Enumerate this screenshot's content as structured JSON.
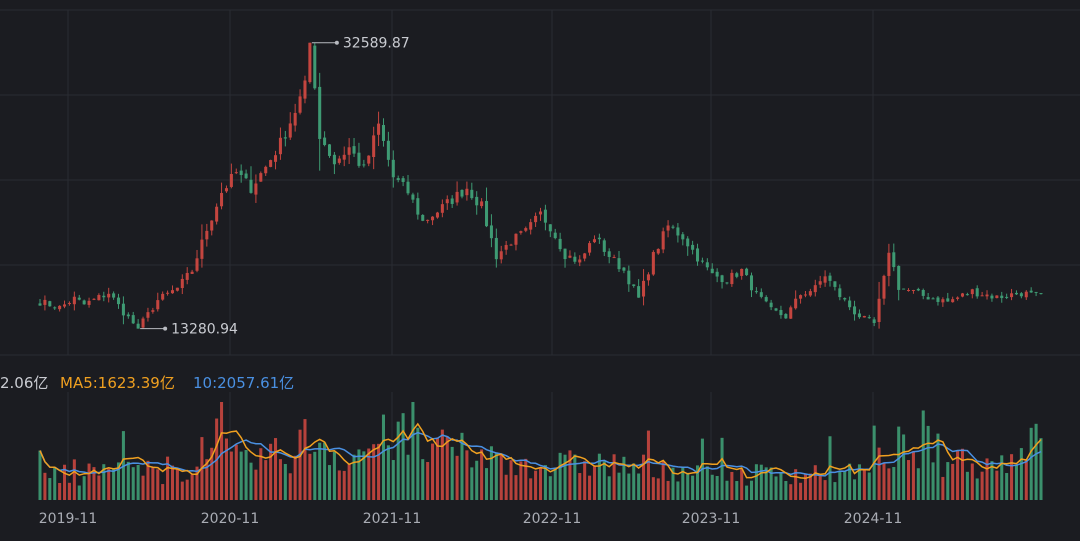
{
  "chart_data": {
    "type": "candlestick",
    "colors": {
      "background": "#1b1c21",
      "grid": "#2a2c33",
      "up": "#c4453f",
      "down": "#3e9a73",
      "ma5": "#f0a020",
      "ma10": "#4a90e2",
      "text": "#c9cbd1",
      "axis_text": "#a9acb4",
      "marker": "#b8bac0"
    },
    "x_axis": {
      "ticks": [
        "2019-11",
        "2020-11",
        "2021-11",
        "2022-11",
        "2023-11",
        "2024-11"
      ]
    },
    "price": {
      "high_label": "32589.87",
      "low_label": "13280.94",
      "high_value": 32589.87,
      "low_value": 13280.94,
      "ylim": [
        11500,
        34800
      ],
      "anchors": [
        [
          0,
          15100
        ],
        [
          4,
          14700
        ],
        [
          7,
          15300
        ],
        [
          9,
          14900
        ],
        [
          14,
          15700
        ],
        [
          17,
          14400
        ],
        [
          20,
          13280.94
        ],
        [
          24,
          15200
        ],
        [
          28,
          16000
        ],
        [
          31,
          17200
        ],
        [
          34,
          20000
        ],
        [
          37,
          22500
        ],
        [
          40,
          23800
        ],
        [
          43,
          22800
        ],
        [
          46,
          24200
        ],
        [
          49,
          25800
        ],
        [
          52,
          28000
        ],
        [
          54,
          29600
        ],
        [
          55,
          32589.87
        ],
        [
          57,
          26400
        ],
        [
          60,
          24500
        ],
        [
          63,
          25500
        ],
        [
          66,
          24000
        ],
        [
          69,
          27000
        ],
        [
          72,
          23500
        ],
        [
          75,
          22500
        ],
        [
          78,
          20500
        ],
        [
          81,
          21200
        ],
        [
          84,
          22000
        ],
        [
          87,
          22800
        ],
        [
          90,
          21500
        ],
        [
          93,
          18200
        ],
        [
          96,
          19200
        ],
        [
          99,
          19800
        ],
        [
          102,
          21000
        ],
        [
          104,
          20200
        ],
        [
          107,
          18300
        ],
        [
          110,
          17800
        ],
        [
          113,
          19500
        ],
        [
          116,
          18200
        ],
        [
          119,
          17200
        ],
        [
          122,
          15300
        ],
        [
          125,
          18200
        ],
        [
          128,
          20200
        ],
        [
          131,
          19500
        ],
        [
          134,
          18100
        ],
        [
          137,
          16900
        ],
        [
          140,
          16600
        ],
        [
          143,
          17200
        ],
        [
          146,
          15600
        ],
        [
          149,
          14500
        ],
        [
          152,
          14100
        ],
        [
          155,
          15600
        ],
        [
          158,
          16000
        ],
        [
          160,
          16900
        ],
        [
          163,
          15500
        ],
        [
          166,
          14400
        ],
        [
          168,
          13900
        ],
        [
          170,
          13600
        ],
        [
          172,
          16600
        ],
        [
          173,
          18600
        ],
        [
          175,
          16100
        ],
        [
          180,
          15500
        ],
        [
          185,
          15100
        ],
        [
          190,
          15800
        ],
        [
          195,
          15400
        ],
        [
          200,
          15700
        ],
        [
          204,
          15400
        ]
      ]
    },
    "volume": {
      "legend_vol": "2.06亿",
      "legend_ma5": "MA5:1623.39亿",
      "legend_ma10": "10:2057.61亿",
      "unit": "亿",
      "ylim": [
        0,
        6000
      ],
      "anchors": [
        [
          0,
          1500
        ],
        [
          5,
          1300
        ],
        [
          10,
          1600
        ],
        [
          15,
          1900
        ],
        [
          20,
          1800
        ],
        [
          25,
          1500
        ],
        [
          30,
          2000
        ],
        [
          33,
          3200
        ],
        [
          36,
          3600
        ],
        [
          39,
          2400
        ],
        [
          42,
          2100
        ],
        [
          46,
          2700
        ],
        [
          50,
          2500
        ],
        [
          54,
          3600
        ],
        [
          57,
          3700
        ],
        [
          60,
          2900
        ],
        [
          63,
          2400
        ],
        [
          66,
          3100
        ],
        [
          70,
          3600
        ],
        [
          73,
          3800
        ],
        [
          76,
          3300
        ],
        [
          80,
          3000
        ],
        [
          84,
          2900
        ],
        [
          88,
          2700
        ],
        [
          92,
          2500
        ],
        [
          96,
          2200
        ],
        [
          100,
          2300
        ],
        [
          104,
          2000
        ],
        [
          108,
          2100
        ],
        [
          112,
          2300
        ],
        [
          116,
          2100
        ],
        [
          120,
          2000
        ],
        [
          124,
          1900
        ],
        [
          128,
          2000
        ],
        [
          132,
          1800
        ],
        [
          136,
          1700
        ],
        [
          140,
          1600
        ],
        [
          144,
          1500
        ],
        [
          148,
          1600
        ],
        [
          152,
          1700
        ],
        [
          156,
          1600
        ],
        [
          160,
          1700
        ],
        [
          164,
          1600
        ],
        [
          168,
          1500
        ],
        [
          172,
          2600
        ],
        [
          174,
          3200
        ],
        [
          178,
          2700
        ],
        [
          182,
          2300
        ],
        [
          186,
          2600
        ],
        [
          190,
          2300
        ],
        [
          194,
          2100
        ],
        [
          198,
          2600
        ],
        [
          201,
          3700
        ],
        [
          204,
          3100
        ]
      ]
    }
  }
}
